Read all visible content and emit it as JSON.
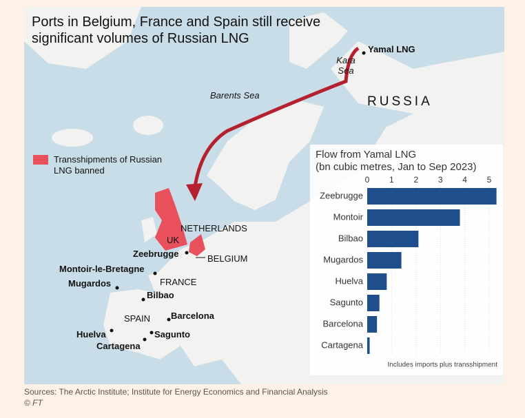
{
  "title": "Ports in Belgium, France and Spain still receive significant volumes of Russian LNG",
  "legend": {
    "label": "Transshipments of Russian LNG banned"
  },
  "map": {
    "seas": [
      "Kara Sea",
      "Barents Sea"
    ],
    "countries": [
      "RUSSIA",
      "NETHERLANDS",
      "UK",
      "BELGIUM",
      "FRANCE",
      "SPAIN"
    ],
    "places": [
      "Yamal LNG",
      "Zeebrugge",
      "Montoir-le-Bretagne",
      "Mugardos",
      "Bilbao",
      "Barcelona",
      "Huelva",
      "Sagunto",
      "Cartagena"
    ]
  },
  "chart_data": {
    "type": "bar",
    "orientation": "horizontal",
    "title": "Flow from Yamal LNG",
    "subtitle": "(bn cubic metres, Jan to Sep 2023)",
    "categories": [
      "Zeebrugge",
      "Montoir",
      "Bilbao",
      "Mugardos",
      "Huelva",
      "Sagunto",
      "Barcelona",
      "Cartagena"
    ],
    "values": [
      5.3,
      3.8,
      2.1,
      1.4,
      0.8,
      0.5,
      0.4,
      0.1
    ],
    "color": "#1f4e8c",
    "xlim": [
      0,
      5.4
    ],
    "xticks": [
      0,
      1,
      2,
      3,
      4,
      5
    ],
    "grid": true,
    "note": "Includes imports plus transshipment"
  },
  "source": "Sources: The Arctic Institute; Institute for Energy Economics and Financial Analysis",
  "credit": "© FT"
}
